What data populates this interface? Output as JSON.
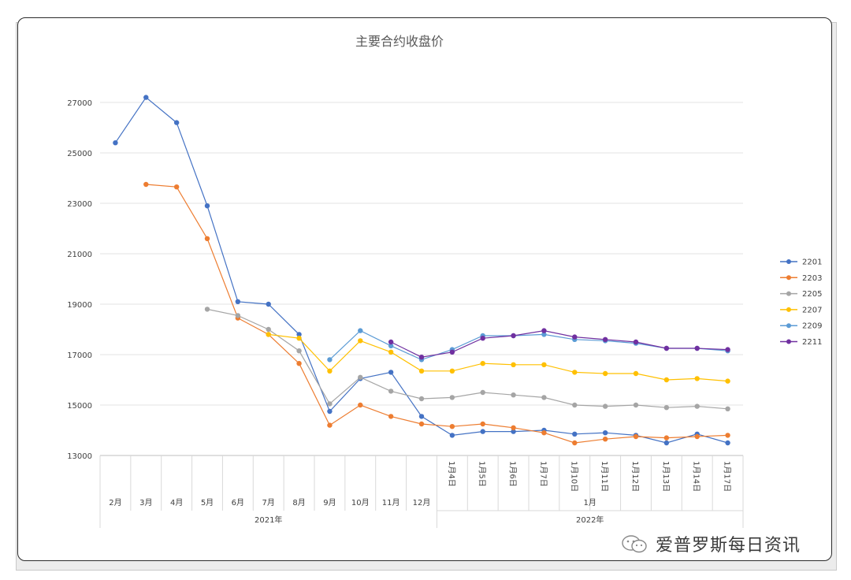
{
  "chart_data": {
    "type": "line",
    "title": "主要合约收盘价",
    "y_ticks": [
      "13000",
      "15000",
      "17000",
      "19000",
      "21000",
      "23000",
      "25000",
      "27000"
    ],
    "ylim": [
      13000,
      28500
    ],
    "grid": true,
    "legend_position": "right",
    "categories": [
      "2月",
      "3月",
      "4月",
      "5月",
      "6月",
      "7月",
      "8月",
      "9月",
      "10月",
      "11月",
      "12月",
      "1月4日",
      "1月5日",
      "1月6日",
      "1月7日",
      "1月10日",
      "1月11日",
      "1月12日",
      "1月13日",
      "1月14日",
      "1月17日"
    ],
    "category_groups": [
      {
        "label": "1月",
        "start": 11,
        "end": 20
      }
    ],
    "year_groups": [
      {
        "label": "2021年",
        "start": 0,
        "end": 10
      },
      {
        "label": "2022年",
        "start": 11,
        "end": 20
      }
    ],
    "series": [
      {
        "name": "2201",
        "color": "#4472C4",
        "values": [
          25400,
          27200,
          26200,
          22900,
          19100,
          19000,
          17800,
          14750,
          16050,
          16300,
          14550,
          13800,
          13950,
          13950,
          14000,
          13850,
          13900,
          13800,
          13500,
          13850,
          13500
        ]
      },
      {
        "name": "2203",
        "color": "#ED7D31",
        "values": [
          null,
          23750,
          23650,
          21600,
          18450,
          17800,
          16650,
          14200,
          15000,
          14550,
          14250,
          14150,
          14250,
          14100,
          13900,
          13500,
          13650,
          13750,
          13700,
          13750,
          13800
        ]
      },
      {
        "name": "2205",
        "color": "#A5A5A5",
        "values": [
          null,
          null,
          null,
          18800,
          18550,
          18000,
          17150,
          15050,
          16100,
          15550,
          15250,
          15300,
          15500,
          15400,
          15300,
          15000,
          14950,
          15000,
          14900,
          14950,
          14850
        ]
      },
      {
        "name": "2207",
        "color": "#FFC000",
        "values": [
          null,
          null,
          null,
          null,
          null,
          17800,
          17650,
          16350,
          17550,
          17100,
          16350,
          16350,
          16650,
          16600,
          16600,
          16300,
          16250,
          16250,
          16000,
          16050,
          15950
        ]
      },
      {
        "name": "2209",
        "color": "#5B9BD5",
        "values": [
          null,
          null,
          null,
          null,
          null,
          null,
          null,
          16800,
          17950,
          17350,
          16800,
          17200,
          17750,
          17750,
          17800,
          17600,
          17550,
          17450,
          17250,
          17250,
          17150
        ]
      },
      {
        "name": "2211",
        "color": "#7030A0",
        "values": [
          null,
          null,
          null,
          null,
          null,
          null,
          null,
          null,
          null,
          17500,
          16900,
          17100,
          17650,
          17750,
          17950,
          17700,
          17600,
          17500,
          17250,
          17250,
          17200
        ]
      }
    ]
  },
  "watermark": {
    "text": "爱普罗斯每日资讯",
    "icon": "wechat-icon"
  }
}
